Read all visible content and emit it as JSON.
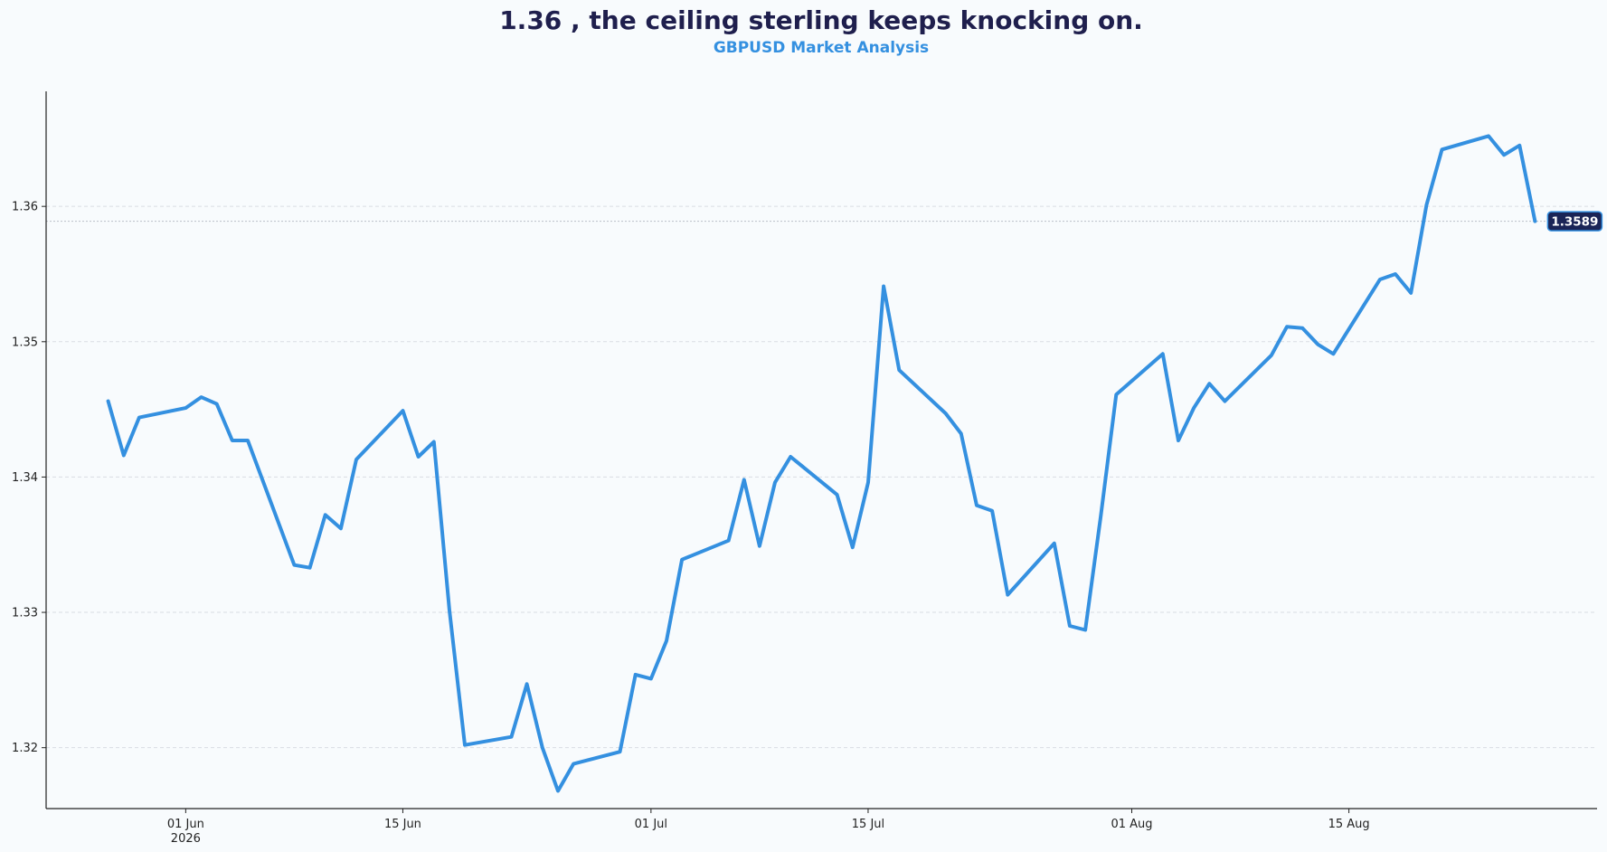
{
  "chart_data": {
    "type": "line",
    "title": "1.36 , the ceiling sterling keeps knocking on.",
    "subtitle": "GBPUSD Market Analysis",
    "xlabel": "",
    "ylabel": "",
    "x_range": [
      "2026-05-23",
      "2026-08-31"
    ],
    "ylim": [
      1.3155,
      1.3685
    ],
    "y_ticks": [
      1.32,
      1.33,
      1.34,
      1.35,
      1.36
    ],
    "y_tick_labels": [
      "1.32",
      "1.33",
      "1.34",
      "1.35",
      "1.36"
    ],
    "x_ticks": [
      "2026-06-01",
      "2026-06-15",
      "2026-07-01",
      "2026-07-15",
      "2026-08-01",
      "2026-08-15"
    ],
    "x_tick_labels": [
      "01 Jun\n2026",
      "15 Jun",
      "01 Jul",
      "15 Jul",
      "01 Aug",
      "15 Aug"
    ],
    "grid": "horizontal dashed",
    "reference_line": 1.3589,
    "last_value_label": "1.3589",
    "colors": {
      "line": "#3490e0",
      "title": "#1f1f4d",
      "subtitle": "#3490e0",
      "badge": "#1a2456",
      "grid": "#d9dde3",
      "background": "#f8fbfd"
    },
    "series": [
      {
        "x": [
          "2026-05-27",
          "2026-05-28",
          "2026-05-29",
          "2026-06-01",
          "2026-06-02",
          "2026-06-03",
          "2026-06-04",
          "2026-06-05",
          "2026-06-08",
          "2026-06-09",
          "2026-06-10",
          "2026-06-11",
          "2026-06-12",
          "2026-06-15",
          "2026-06-16",
          "2026-06-17",
          "2026-06-18",
          "2026-06-19",
          "2026-06-22",
          "2026-06-23",
          "2026-06-24",
          "2026-06-25",
          "2026-06-26",
          "2026-06-29",
          "2026-06-30",
          "2026-07-01",
          "2026-07-02",
          "2026-07-03",
          "2026-07-06",
          "2026-07-07",
          "2026-07-08",
          "2026-07-09",
          "2026-07-10",
          "2026-07-13",
          "2026-07-14",
          "2026-07-15",
          "2026-07-16",
          "2026-07-17",
          "2026-07-20",
          "2026-07-21",
          "2026-07-22",
          "2026-07-23",
          "2026-07-24",
          "2026-07-27",
          "2026-07-28",
          "2026-07-29",
          "2026-07-30",
          "2026-07-31",
          "2026-08-03",
          "2026-08-04",
          "2026-08-05",
          "2026-08-06",
          "2026-08-07",
          "2026-08-10",
          "2026-08-11",
          "2026-08-12",
          "2026-08-13",
          "2026-08-14",
          "2026-08-17",
          "2026-08-18",
          "2026-08-19",
          "2026-08-20",
          "2026-08-21",
          "2026-08-24",
          "2026-08-25",
          "2026-08-26",
          "2026-08-27"
        ],
        "values": [
          1.3456,
          1.3416,
          1.3444,
          1.3451,
          1.3459,
          1.3454,
          1.3427,
          1.3427,
          1.3335,
          1.3333,
          1.3372,
          1.3362,
          1.3413,
          1.3449,
          1.3415,
          1.3426,
          1.3302,
          1.3202,
          1.3208,
          1.3247,
          1.32,
          1.3168,
          1.3188,
          1.3197,
          1.3254,
          1.3251,
          1.3279,
          1.3339,
          1.3353,
          1.3398,
          1.3349,
          1.3396,
          1.3415,
          1.3387,
          1.3348,
          1.3396,
          1.3541,
          1.3479,
          1.3447,
          1.3432,
          1.3379,
          1.3375,
          1.3313,
          1.3351,
          1.329,
          1.3287,
          1.3371,
          1.3461,
          1.3491,
          1.3427,
          1.3451,
          1.3469,
          1.3456,
          1.349,
          1.3511,
          1.351,
          1.3498,
          1.3491,
          1.3546,
          1.355,
          1.3536,
          1.3601,
          1.3642,
          1.3652,
          1.3638,
          1.3645,
          1.3589
        ]
      }
    ]
  }
}
